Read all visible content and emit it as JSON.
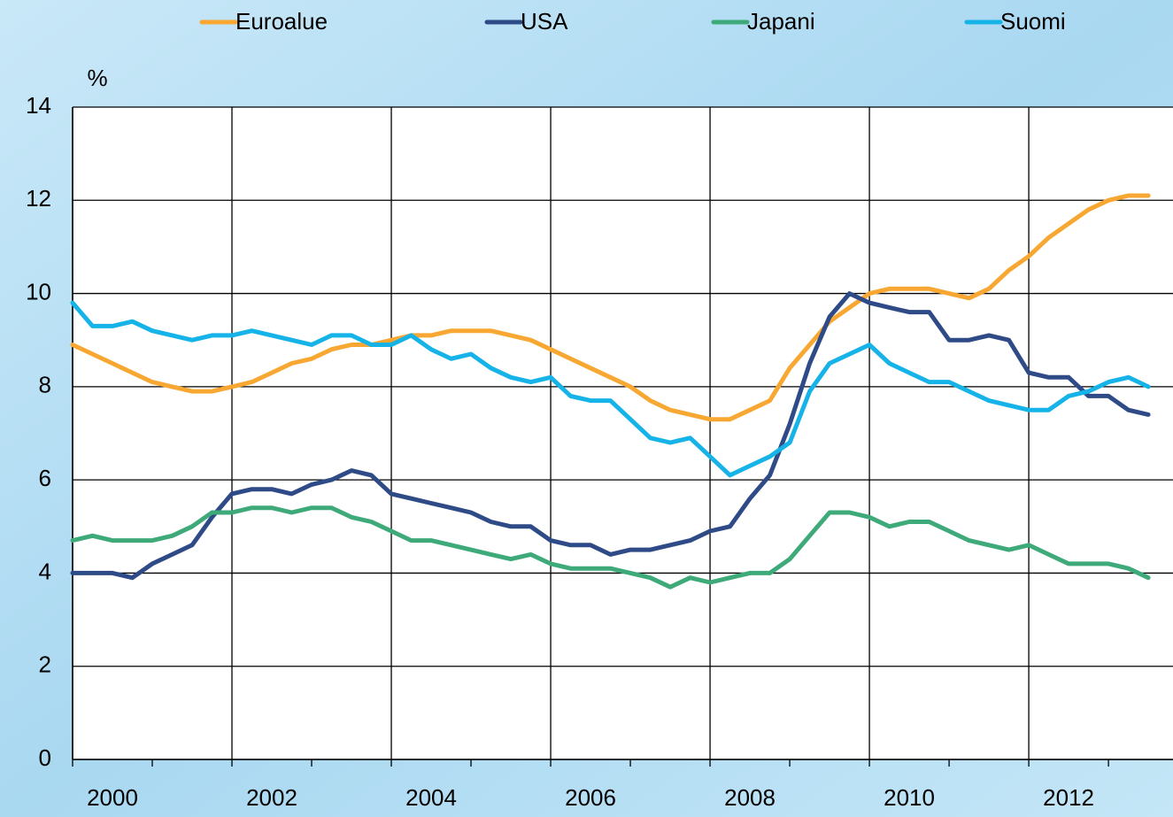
{
  "chart_data": {
    "type": "line",
    "ylabel": "%",
    "x": [
      2000,
      2000.25,
      2000.5,
      2000.75,
      2001,
      2001.25,
      2001.5,
      2001.75,
      2002,
      2002.25,
      2002.5,
      2002.75,
      2003,
      2003.25,
      2003.5,
      2003.75,
      2004,
      2004.25,
      2004.5,
      2004.75,
      2005,
      2005.25,
      2005.5,
      2005.75,
      2006,
      2006.25,
      2006.5,
      2006.75,
      2007,
      2007.25,
      2007.5,
      2007.75,
      2008,
      2008.25,
      2008.5,
      2008.75,
      2009,
      2009.25,
      2009.5,
      2009.75,
      2010,
      2010.25,
      2010.5,
      2010.75,
      2011,
      2011.25,
      2011.5,
      2011.75,
      2012,
      2012.25,
      2012.5,
      2012.75,
      2013,
      2013.25,
      2013.5
    ],
    "series": [
      {
        "name": "Euroalue",
        "color": "#f8a832",
        "values": [
          8.9,
          8.7,
          8.5,
          8.3,
          8.1,
          8.0,
          7.9,
          7.9,
          8.0,
          8.1,
          8.3,
          8.5,
          8.6,
          8.8,
          8.9,
          8.9,
          9.0,
          9.1,
          9.1,
          9.2,
          9.2,
          9.2,
          9.1,
          9.0,
          8.8,
          8.6,
          8.4,
          8.2,
          8.0,
          7.7,
          7.5,
          7.4,
          7.3,
          7.3,
          7.5,
          7.7,
          8.4,
          8.9,
          9.4,
          9.7,
          10.0,
          10.1,
          10.1,
          10.1,
          10.0,
          9.9,
          10.1,
          10.5,
          10.8,
          11.2,
          11.5,
          11.8,
          12.0,
          12.1,
          12.1
        ]
      },
      {
        "name": "USA",
        "color": "#2e4a87",
        "values": [
          4.0,
          4.0,
          4.0,
          3.9,
          4.2,
          4.4,
          4.6,
          5.2,
          5.7,
          5.8,
          5.8,
          5.7,
          5.9,
          6.0,
          6.2,
          6.1,
          5.7,
          5.6,
          5.5,
          5.4,
          5.3,
          5.1,
          5.0,
          5.0,
          4.7,
          4.6,
          4.6,
          4.4,
          4.5,
          4.5,
          4.6,
          4.7,
          4.9,
          5.0,
          5.6,
          6.1,
          7.2,
          8.5,
          9.5,
          10.0,
          9.8,
          9.7,
          9.6,
          9.6,
          9.0,
          9.0,
          9.1,
          9.0,
          8.3,
          8.2,
          8.2,
          7.8,
          7.8,
          7.5,
          7.4
        ]
      },
      {
        "name": "Japani",
        "color": "#3eaa7a",
        "values": [
          4.7,
          4.8,
          4.7,
          4.7,
          4.7,
          4.8,
          5.0,
          5.3,
          5.3,
          5.4,
          5.4,
          5.3,
          5.4,
          5.4,
          5.2,
          5.1,
          4.9,
          4.7,
          4.7,
          4.6,
          4.5,
          4.4,
          4.3,
          4.4,
          4.2,
          4.1,
          4.1,
          4.1,
          4.0,
          3.9,
          3.7,
          3.9,
          3.8,
          3.9,
          4.0,
          4.0,
          4.3,
          4.8,
          5.3,
          5.3,
          5.2,
          5.0,
          5.1,
          5.1,
          4.9,
          4.7,
          4.6,
          4.5,
          4.6,
          4.4,
          4.2,
          4.2,
          4.2,
          4.1,
          3.9
        ]
      },
      {
        "name": "Suomi",
        "color": "#16b3e8",
        "values": [
          9.8,
          9.3,
          9.3,
          9.4,
          9.2,
          9.1,
          9.0,
          9.1,
          9.1,
          9.2,
          9.1,
          9.0,
          8.9,
          9.1,
          9.1,
          8.9,
          8.9,
          9.1,
          8.8,
          8.6,
          8.7,
          8.4,
          8.2,
          8.1,
          8.2,
          7.8,
          7.7,
          7.7,
          7.3,
          6.9,
          6.8,
          6.9,
          6.5,
          6.1,
          6.3,
          6.5,
          6.8,
          7.9,
          8.5,
          8.7,
          8.9,
          8.5,
          8.3,
          8.1,
          8.1,
          7.9,
          7.7,
          7.6,
          7.5,
          7.5,
          7.8,
          7.9,
          8.1,
          8.2,
          8.0
        ]
      }
    ],
    "xlim": [
      2000,
      2013.81
    ],
    "xticks": [
      2000,
      2002,
      2004,
      2006,
      2008,
      2010,
      2012
    ],
    "xminor_ticks": [
      2001,
      2003,
      2005,
      2007,
      2009,
      2011,
      2013
    ],
    "ylim": [
      0,
      14
    ],
    "yticks": [
      0,
      2,
      4,
      6,
      8,
      10,
      12,
      14
    ],
    "grid": true,
    "legend": "top"
  }
}
